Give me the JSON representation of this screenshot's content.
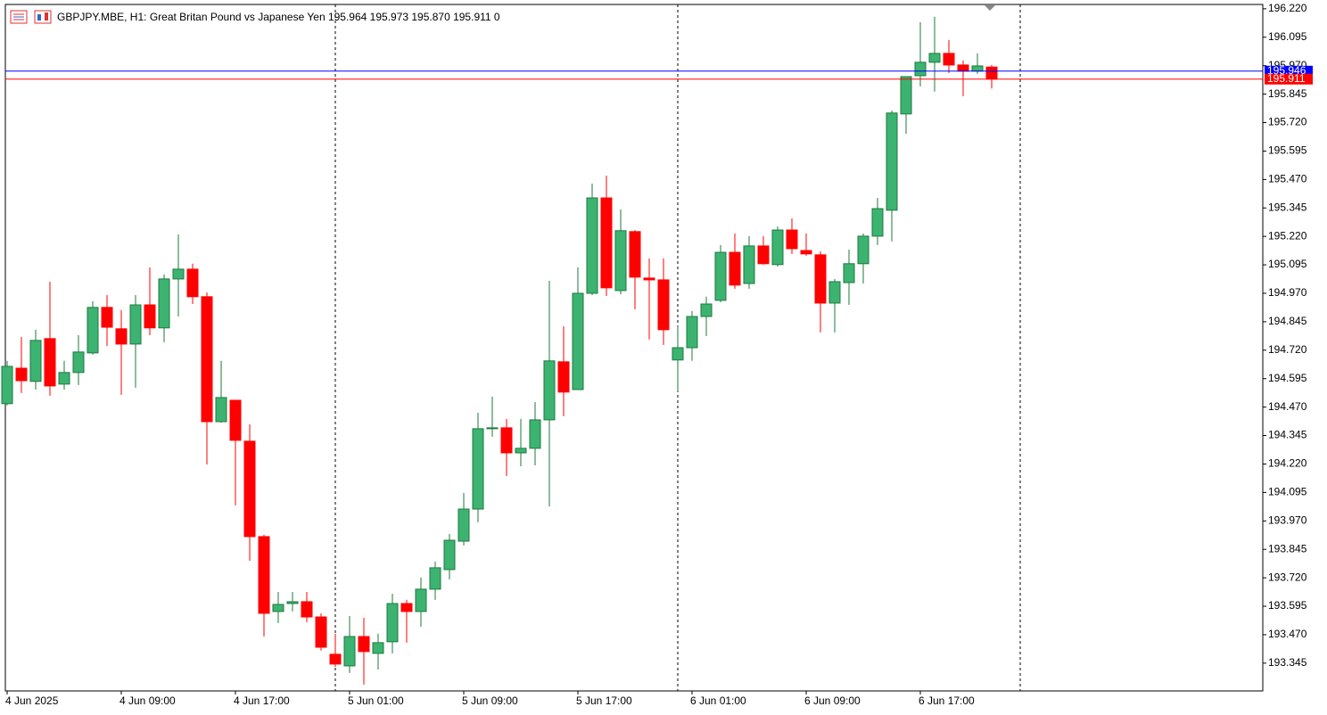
{
  "chart_data": {
    "type": "candlestick",
    "title": "GBPJPY.MBE, H1:  Great Britan Pound vs Japanese Yen  195.964 195.973 195.870 195.911  0",
    "categories": [
      "4 Jun 2025",
      null,
      null,
      null,
      null,
      null,
      null,
      null,
      "4 Jun 09:00",
      null,
      null,
      null,
      null,
      null,
      null,
      null,
      "4 Jun 17:00",
      null,
      null,
      null,
      null,
      null,
      null,
      null,
      "5 Jun 01:00",
      null,
      null,
      null,
      null,
      null,
      null,
      null,
      "5 Jun 09:00",
      null,
      null,
      null,
      null,
      null,
      null,
      null,
      "5 Jun 17:00",
      null,
      null,
      null,
      null,
      null,
      null,
      null,
      "6 Jun 01:00",
      null,
      null,
      null,
      null,
      null,
      null,
      null,
      "6 Jun 09:00",
      null,
      null,
      null,
      null,
      null,
      null,
      null,
      "6 Jun 17:00",
      null,
      null,
      null,
      null,
      null
    ],
    "open": [
      194.485,
      194.641,
      194.583,
      194.771,
      194.571,
      194.622,
      194.708,
      194.908,
      194.814,
      194.747,
      194.919,
      194.818,
      195.033,
      195.076,
      194.955,
      194.406,
      194.5,
      194.32,
      193.901,
      193.572,
      193.607,
      193.615,
      193.548,
      193.384,
      193.333,
      193.462,
      193.388,
      193.439,
      193.607,
      193.572,
      193.67,
      193.756,
      193.881,
      194.022,
      194.375,
      194.379,
      194.269,
      194.289,
      194.414,
      194.669,
      194.547,
      194.97,
      195.389,
      194.982,
      195.241,
      195.037,
      195.029,
      194.677,
      194.731,
      194.868,
      194.939,
      195.15,
      195.013,
      195.178,
      195.096,
      195.248,
      195.158,
      195.139,
      194.927,
      195.017,
      195.1,
      195.221,
      195.335,
      195.758,
      195.926,
      195.985,
      196.024,
      195.973,
      195.946,
      195.964
    ],
    "high": [
      194.673,
      194.778,
      194.81,
      195.021,
      194.673,
      194.786,
      194.935,
      194.962,
      194.896,
      194.962,
      195.084,
      195.053,
      195.229,
      195.1,
      194.974,
      194.673,
      194.5,
      194.394,
      193.909,
      193.658,
      193.658,
      193.658,
      193.564,
      193.474,
      193.552,
      193.544,
      193.474,
      193.65,
      193.623,
      193.721,
      193.791,
      193.913,
      194.093,
      194.445,
      194.516,
      194.418,
      194.418,
      194.492,
      195.025,
      194.825,
      195.084,
      195.452,
      195.487,
      195.338,
      195.248,
      195.123,
      195.123,
      194.825,
      194.892,
      194.955,
      195.182,
      195.233,
      195.221,
      195.221,
      195.264,
      195.299,
      195.233,
      195.155,
      195.033,
      195.162,
      195.233,
      195.389,
      195.773,
      195.922,
      196.161,
      196.185,
      196.083,
      195.993,
      196.024,
      195.973
    ],
    "low": [
      194.477,
      194.532,
      194.547,
      194.52,
      194.547,
      194.567,
      194.7,
      194.739,
      194.524,
      194.555,
      194.786,
      194.755,
      194.868,
      194.923,
      194.218,
      194.402,
      194.038,
      193.795,
      193.462,
      193.521,
      193.572,
      193.525,
      193.4,
      193.329,
      193.302,
      193.251,
      193.317,
      193.388,
      193.435,
      193.505,
      193.623,
      193.713,
      193.862,
      193.964,
      194.34,
      194.167,
      194.21,
      194.214,
      194.034,
      194.43,
      194.547,
      194.962,
      194.958,
      194.966,
      194.9,
      194.767,
      194.743,
      194.539,
      194.673,
      194.782,
      194.931,
      194.99,
      194.99,
      195.096,
      195.088,
      195.143,
      195.135,
      194.798,
      194.798,
      194.919,
      195.013,
      195.182,
      195.198,
      195.671,
      195.879,
      195.856,
      195.938,
      195.836,
      195.934,
      195.87
    ],
    "close": [
      194.649,
      194.586,
      194.763,
      194.563,
      194.622,
      194.712,
      194.908,
      194.821,
      194.747,
      194.919,
      194.818,
      195.033,
      195.076,
      194.955,
      194.406,
      194.512,
      194.324,
      193.901,
      193.564,
      193.603,
      193.615,
      193.548,
      193.415,
      193.341,
      193.462,
      193.396,
      193.435,
      193.607,
      193.572,
      193.67,
      193.764,
      193.885,
      194.022,
      194.375,
      194.379,
      194.269,
      194.289,
      194.414,
      194.673,
      194.536,
      194.97,
      195.389,
      194.994,
      195.245,
      195.041,
      195.029,
      194.81,
      194.731,
      194.868,
      194.923,
      195.15,
      195.006,
      195.178,
      195.1,
      195.248,
      195.166,
      195.143,
      194.927,
      195.021,
      195.1,
      195.221,
      195.342,
      195.762,
      195.922,
      195.985,
      196.024,
      195.973,
      195.946,
      195.969,
      195.911
    ],
    "up_color": "#3cb371",
    "down_color": "#ff0000",
    "bid_line": {
      "value": 195.911,
      "label": "195.911",
      "color": "#ff0000"
    },
    "ask_line": {
      "value": 195.946,
      "label": "195.946",
      "color": "#0000ff"
    },
    "ylim": [
      193.223,
      196.239
    ],
    "yticks": [
      193.345,
      {
        "value": 193.47,
        "label": "193.470"
      },
      193.595,
      {
        "value": 193.72,
        "label": "193.720"
      },
      193.845,
      {
        "value": 193.97,
        "label": "193.970"
      },
      194.095,
      {
        "value": 194.22,
        "label": "194.220"
      },
      194.345,
      {
        "value": 194.47,
        "label": "194.470"
      },
      194.595,
      {
        "value": 194.72,
        "label": "194.720"
      },
      194.845,
      {
        "value": 194.97,
        "label": "194.970"
      },
      195.095,
      {
        "value": 195.22,
        "label": "195.220"
      },
      195.345,
      {
        "value": 195.47,
        "label": "195.470"
      },
      195.595,
      {
        "value": 195.72,
        "label": "195.720"
      },
      195.845,
      {
        "value": 195.97,
        "label": "195.970"
      },
      196.095,
      {
        "value": 196.22,
        "label": "196.220"
      }
    ]
  }
}
